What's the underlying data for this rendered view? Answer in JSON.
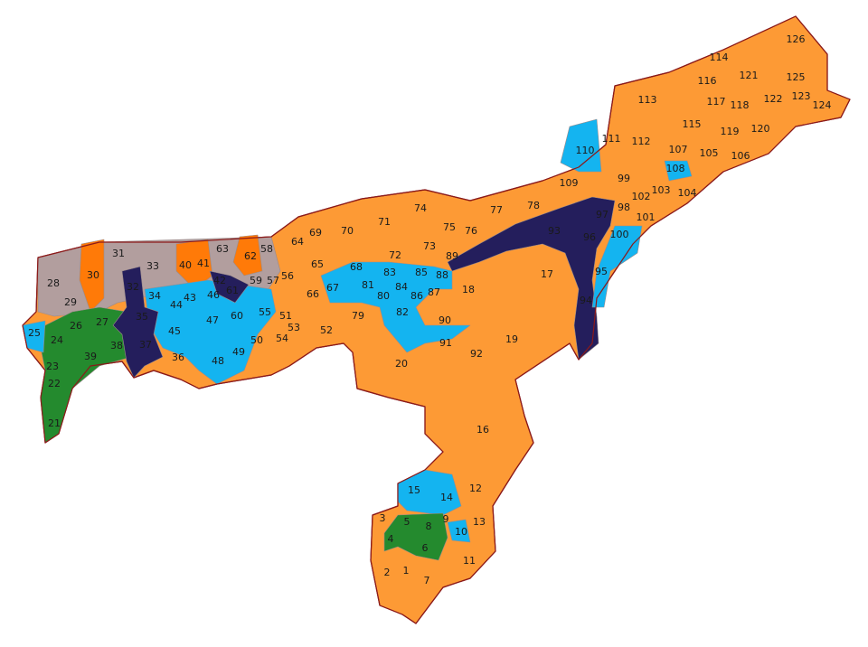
{
  "map": {
    "colors": {
      "orange": "#FD9A35",
      "light-blue": "#14B4F0",
      "navy": "#241E5C",
      "green": "#248A2E",
      "gray": "#B29E9E",
      "bright-orange": "#FF7A08",
      "border": "#8B1A1A"
    },
    "groups": {
      "light-blue": [
        "10",
        "14",
        "15",
        "25",
        "34",
        "43",
        "44",
        "45",
        "46",
        "47",
        "48",
        "49",
        "55",
        "60",
        "67",
        "68",
        "81",
        "82",
        "83",
        "84",
        "85",
        "88",
        "90",
        "95",
        "100",
        "108",
        "110"
      ],
      "green": [
        "4",
        "5",
        "6",
        "8",
        "21",
        "22",
        "23",
        "24",
        "26",
        "27",
        "38",
        "39"
      ],
      "navy": [
        "32",
        "35",
        "37",
        "42",
        "61",
        "89",
        "93",
        "94",
        "96",
        "97"
      ],
      "gray": [
        "28",
        "29",
        "31",
        "33",
        "58",
        "63"
      ],
      "bright-orange": [
        "30",
        "40",
        "41",
        "62"
      ]
    },
    "default_group": "orange",
    "constituencies": [
      "1",
      "2",
      "3",
      "4",
      "5",
      "6",
      "7",
      "8",
      "9",
      "10",
      "11",
      "12",
      "13",
      "14",
      "15",
      "16",
      "17",
      "18",
      "19",
      "20",
      "21",
      "22",
      "23",
      "24",
      "25",
      "26",
      "27",
      "28",
      "29",
      "30",
      "31",
      "32",
      "33",
      "34",
      "35",
      "36",
      "37",
      "38",
      "39",
      "40",
      "41",
      "42",
      "43",
      "44",
      "45",
      "46",
      "47",
      "48",
      "49",
      "50",
      "51",
      "52",
      "53",
      "54",
      "55",
      "56",
      "57",
      "58",
      "59",
      "60",
      "61",
      "62",
      "63",
      "64",
      "65",
      "66",
      "67",
      "68",
      "69",
      "70",
      "71",
      "72",
      "73",
      "74",
      "75",
      "76",
      "77",
      "78",
      "79",
      "80",
      "81",
      "82",
      "83",
      "84",
      "85",
      "86",
      "87",
      "88",
      "89",
      "90",
      "91",
      "92",
      "93",
      "94",
      "95",
      "96",
      "97",
      "98",
      "99",
      "100",
      "101",
      "102",
      "103",
      "104",
      "105",
      "106",
      "107",
      "108",
      "109",
      "110",
      "111",
      "112",
      "113",
      "114",
      "115",
      "116",
      "117",
      "118",
      "119",
      "120",
      "121",
      "122",
      "123",
      "124",
      "125",
      "126"
    ]
  }
}
